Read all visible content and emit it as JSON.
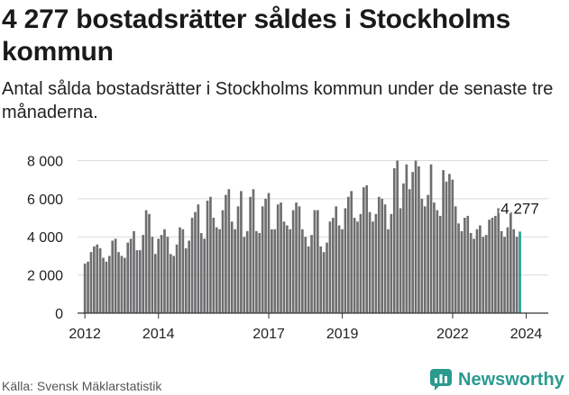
{
  "title": "4 277 bostadsrätter såldes i Stockholms kommun",
  "subtitle": "Antal sålda bostadsrätter i Stockholms kommun under de senaste tre månaderna.",
  "source": "Källa: Svensk Mäklarstatistik",
  "brand": "Newsworthy",
  "colors": {
    "bar": "#6e6e70",
    "highlight": "#2b9a8f",
    "grid": "#d9d9d9",
    "axis": "#333333"
  },
  "chart_data": {
    "type": "bar",
    "title": "4 277 bostadsrätter såldes i Stockholms kommun",
    "xlabel": "",
    "ylabel": "",
    "x_range": [
      2011.8,
      2024.6
    ],
    "ylim": [
      0,
      8400
    ],
    "yticks": [
      0,
      2000,
      4000,
      6000,
      8000
    ],
    "ytick_labels": [
      "0",
      "2 000",
      "4 000",
      "6 000",
      "8 000"
    ],
    "xticks": [
      2012,
      2014,
      2017,
      2019,
      2022,
      2024
    ],
    "xtick_labels": [
      "2012",
      "2014",
      "2017",
      "2019",
      "2022",
      "2024"
    ],
    "grid": true,
    "bar_width_years": 0.065,
    "series": [
      {
        "name": "Sålda bostadsrätter",
        "start": 2012.0,
        "step": 0.0833,
        "values": [
          2600,
          2700,
          3200,
          3500,
          3600,
          3400,
          2900,
          2700,
          3000,
          3800,
          3900,
          3200,
          3000,
          2900,
          3700,
          3900,
          4300,
          3300,
          3300,
          4100,
          5400,
          5200,
          4000,
          3100,
          3900,
          4100,
          4400,
          4000,
          3100,
          3000,
          3600,
          4500,
          4400,
          3400,
          3800,
          5000,
          5300,
          5700,
          4200,
          3900,
          5900,
          6100,
          5000,
          4500,
          4400,
          5400,
          6200,
          6500,
          4800,
          4400,
          5600,
          6400,
          4000,
          4300,
          6100,
          6500,
          4300,
          4200,
          5600,
          6000,
          6300,
          4400,
          4400,
          5700,
          5800,
          4800,
          4600,
          4400,
          5400,
          5800,
          5600,
          4400,
          4000,
          3500,
          4100,
          5400,
          5400,
          3500,
          3200,
          3700,
          4800,
          5000,
          5600,
          4600,
          4400,
          5500,
          6100,
          6400,
          5000,
          4800,
          5200,
          6600,
          6700,
          5300,
          4800,
          5200,
          6100,
          6000,
          5700,
          4400,
          5200,
          7600,
          8000,
          5500,
          6800,
          7800,
          6500,
          7400,
          8000,
          7700,
          6000,
          5600,
          6200,
          7800,
          5800,
          5400,
          5100,
          7500,
          6900,
          7300,
          7000,
          5600,
          4700,
          4300,
          5000,
          5100,
          4200,
          3900,
          4400,
          4600,
          4000,
          4100,
          4900,
          5000,
          5100,
          5500,
          4300,
          4000,
          4500,
          5300,
          4400,
          4000,
          4277
        ]
      }
    ],
    "annotation": {
      "label": "4 277",
      "value": 4277
    }
  }
}
